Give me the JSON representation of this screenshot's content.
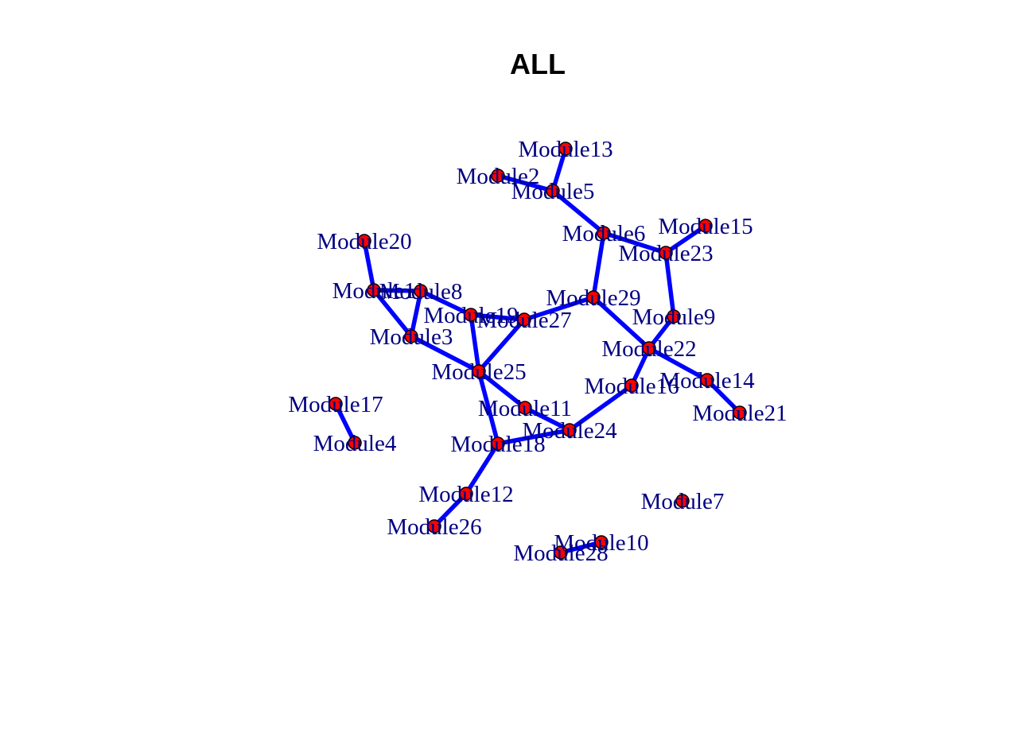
{
  "title": "ALL",
  "colors": {
    "edge": "#0000ff",
    "node_fill": "#ff0000",
    "node_stroke": "#000000",
    "label": "#000080",
    "background": "#ffffff"
  },
  "nodes": [
    {
      "id": "Module2",
      "label": "Module2"
    },
    {
      "id": "Module3",
      "label": "Module3"
    },
    {
      "id": "Module4",
      "label": "Module4"
    },
    {
      "id": "Module5",
      "label": "Module5"
    },
    {
      "id": "Module6",
      "label": "Module6"
    },
    {
      "id": "Module7",
      "label": "Module7"
    },
    {
      "id": "Module8",
      "label": "Module8"
    },
    {
      "id": "Module9",
      "label": "Module9"
    },
    {
      "id": "Module10",
      "label": "Module10"
    },
    {
      "id": "Module11",
      "label": "Module11"
    },
    {
      "id": "Module12",
      "label": "Module12"
    },
    {
      "id": "Module13",
      "label": "Module13"
    },
    {
      "id": "Module14",
      "label": "Module14"
    },
    {
      "id": "Module15",
      "label": "Module15"
    },
    {
      "id": "Module16",
      "label": "Module16"
    },
    {
      "id": "Module17",
      "label": "Module17"
    },
    {
      "id": "Module18",
      "label": "Module18"
    },
    {
      "id": "Module19",
      "label": "Module19"
    },
    {
      "id": "Module20",
      "label": "Module20"
    },
    {
      "id": "Module21",
      "label": "Module21"
    },
    {
      "id": "Module22",
      "label": "Module22"
    },
    {
      "id": "Module23",
      "label": "Module23"
    },
    {
      "id": "Module24",
      "label": "Module24"
    },
    {
      "id": "Module25",
      "label": "Module25"
    },
    {
      "id": "Module26",
      "label": "Module26"
    },
    {
      "id": "Module27",
      "label": "Module27"
    },
    {
      "id": "Module28",
      "label": "Module28"
    },
    {
      "id": "Module29",
      "label": "Module29"
    },
    {
      "id": "Module1",
      "label": "Module1"
    }
  ],
  "edges": [
    [
      "Module13",
      "Module5"
    ],
    [
      "Module2",
      "Module5"
    ],
    [
      "Module5",
      "Module6"
    ],
    [
      "Module6",
      "Module23"
    ],
    [
      "Module15",
      "Module23"
    ],
    [
      "Module6",
      "Module29"
    ],
    [
      "Module23",
      "Module9"
    ],
    [
      "Module9",
      "Module22"
    ],
    [
      "Module29",
      "Module22"
    ],
    [
      "Module29",
      "Module27"
    ],
    [
      "Module22",
      "Module16"
    ],
    [
      "Module22",
      "Module14"
    ],
    [
      "Module14",
      "Module21"
    ],
    [
      "Module16",
      "Module24"
    ],
    [
      "Module24",
      "Module11"
    ],
    [
      "Module24",
      "Module18"
    ],
    [
      "Module11",
      "Module25"
    ],
    [
      "Module25",
      "Module18"
    ],
    [
      "Module25",
      "Module19"
    ],
    [
      "Module25",
      "Module27"
    ],
    [
      "Module25",
      "Module3"
    ],
    [
      "Module19",
      "Module27"
    ],
    [
      "Module19",
      "Module8"
    ],
    [
      "Module8",
      "Module1"
    ],
    [
      "Module8",
      "Module3"
    ],
    [
      "Module1",
      "Module3"
    ],
    [
      "Module1",
      "Module20"
    ],
    [
      "Module17",
      "Module4"
    ],
    [
      "Module18",
      "Module12"
    ],
    [
      "Module12",
      "Module26"
    ],
    [
      "Module28",
      "Module10"
    ]
  ]
}
